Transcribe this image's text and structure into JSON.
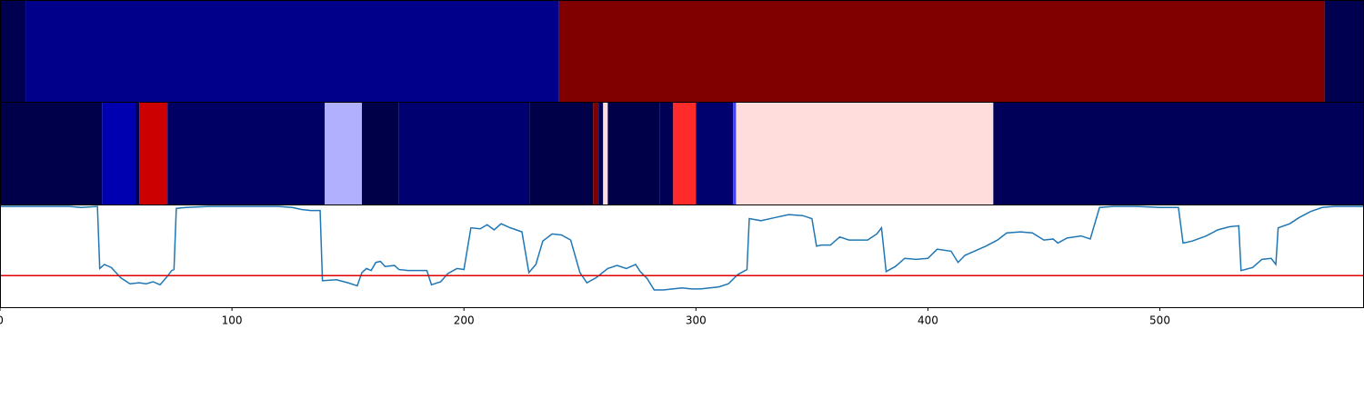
{
  "chart_data": [
    {
      "type": "strip",
      "xlim": [
        0,
        588
      ],
      "segments": [
        {
          "start": 0,
          "end": 11,
          "color": "#000050"
        },
        {
          "start": 11,
          "end": 241,
          "color": "#00008a"
        },
        {
          "start": 241,
          "end": 571,
          "color": "#800000"
        },
        {
          "start": 571,
          "end": 588,
          "color": "#000050"
        }
      ]
    },
    {
      "type": "strip",
      "xlim": [
        0,
        588
      ],
      "segments": [
        {
          "start": 0,
          "end": 44,
          "color": "#00004a"
        },
        {
          "start": 44,
          "end": 58.4,
          "color": "#0000b0"
        },
        {
          "start": 58.4,
          "end": 60,
          "color": "#000050"
        },
        {
          "start": 60,
          "end": 72.2,
          "color": "#cc0000"
        },
        {
          "start": 72.2,
          "end": 140,
          "color": "#000064"
        },
        {
          "start": 140,
          "end": 156,
          "color": "#b0b0ff"
        },
        {
          "start": 156,
          "end": 171.8,
          "color": "#000048"
        },
        {
          "start": 171.8,
          "end": 228.2,
          "color": "#000070"
        },
        {
          "start": 228.2,
          "end": 255.7,
          "color": "#000048"
        },
        {
          "start": 255.7,
          "end": 258,
          "color": "#800000"
        },
        {
          "start": 258,
          "end": 260,
          "color": "#000050"
        },
        {
          "start": 260,
          "end": 262,
          "color": "#ffdddd"
        },
        {
          "start": 262,
          "end": 284.3,
          "color": "#000048"
        },
        {
          "start": 284.3,
          "end": 290.2,
          "color": "#000055"
        },
        {
          "start": 290.2,
          "end": 300,
          "color": "#ff2a2a"
        },
        {
          "start": 300,
          "end": 316,
          "color": "#00006e"
        },
        {
          "start": 316,
          "end": 317.3,
          "color": "#4040ff"
        },
        {
          "start": 317.3,
          "end": 428.2,
          "color": "#ffdddd"
        },
        {
          "start": 428.2,
          "end": 588,
          "color": "#000058"
        }
      ]
    },
    {
      "type": "line",
      "xlim": [
        0,
        588
      ],
      "ylim": [
        0,
        1
      ],
      "xticks": [
        0,
        100,
        200,
        300,
        400,
        500
      ],
      "color": "#1f77b4",
      "hline": 0.31,
      "hline_color": "#e00000",
      "x": [
        0,
        10,
        20,
        30,
        35,
        42,
        43,
        45,
        48,
        52,
        56,
        60,
        63,
        66,
        69,
        72,
        74,
        75,
        76,
        80,
        90,
        100,
        110,
        120,
        126,
        130,
        134,
        138,
        139,
        145,
        150,
        154,
        156,
        158,
        160,
        162,
        164,
        166,
        170,
        172,
        176,
        180,
        184,
        186,
        190,
        193,
        197,
        200,
        203,
        207,
        210,
        213,
        216,
        220,
        225,
        228,
        231,
        234,
        238,
        242,
        246,
        250,
        253,
        257,
        262,
        266,
        270,
        274,
        276,
        279,
        282,
        286,
        290,
        294,
        298,
        302,
        306,
        310,
        314,
        318,
        322,
        323,
        328,
        334,
        340,
        346,
        350,
        352,
        354,
        358,
        362,
        366,
        370,
        374,
        378,
        380,
        382,
        386,
        390,
        395,
        400,
        404,
        410,
        413,
        416,
        420,
        425,
        430,
        434,
        440,
        445,
        450,
        454,
        456,
        460,
        466,
        470,
        474,
        480,
        490,
        500,
        508,
        510,
        514,
        520,
        525,
        530,
        534,
        535,
        540,
        544,
        548,
        550,
        551,
        556,
        560,
        565,
        570,
        575,
        588
      ],
      "values": [
        0.99,
        0.99,
        0.99,
        0.99,
        0.98,
        0.99,
        0.38,
        0.42,
        0.39,
        0.29,
        0.23,
        0.24,
        0.23,
        0.25,
        0.22,
        0.3,
        0.36,
        0.37,
        0.97,
        0.98,
        0.99,
        0.99,
        0.99,
        0.99,
        0.98,
        0.96,
        0.95,
        0.95,
        0.26,
        0.27,
        0.24,
        0.21,
        0.34,
        0.38,
        0.36,
        0.44,
        0.45,
        0.4,
        0.41,
        0.37,
        0.36,
        0.36,
        0.36,
        0.22,
        0.25,
        0.33,
        0.38,
        0.37,
        0.78,
        0.77,
        0.81,
        0.76,
        0.82,
        0.78,
        0.74,
        0.34,
        0.42,
        0.65,
        0.72,
        0.71,
        0.66,
        0.34,
        0.24,
        0.29,
        0.38,
        0.41,
        0.38,
        0.42,
        0.35,
        0.28,
        0.17,
        0.17,
        0.18,
        0.19,
        0.18,
        0.18,
        0.19,
        0.2,
        0.23,
        0.32,
        0.37,
        0.87,
        0.85,
        0.88,
        0.91,
        0.9,
        0.87,
        0.6,
        0.61,
        0.61,
        0.69,
        0.66,
        0.66,
        0.66,
        0.72,
        0.78,
        0.35,
        0.4,
        0.48,
        0.47,
        0.48,
        0.57,
        0.55,
        0.44,
        0.51,
        0.55,
        0.6,
        0.66,
        0.73,
        0.74,
        0.73,
        0.66,
        0.67,
        0.63,
        0.68,
        0.7,
        0.67,
        0.98,
        0.99,
        0.99,
        0.98,
        0.98,
        0.63,
        0.65,
        0.7,
        0.76,
        0.79,
        0.8,
        0.36,
        0.39,
        0.47,
        0.48,
        0.42,
        0.78,
        0.82,
        0.88,
        0.94,
        0.98,
        0.99,
        0.99
      ]
    }
  ]
}
